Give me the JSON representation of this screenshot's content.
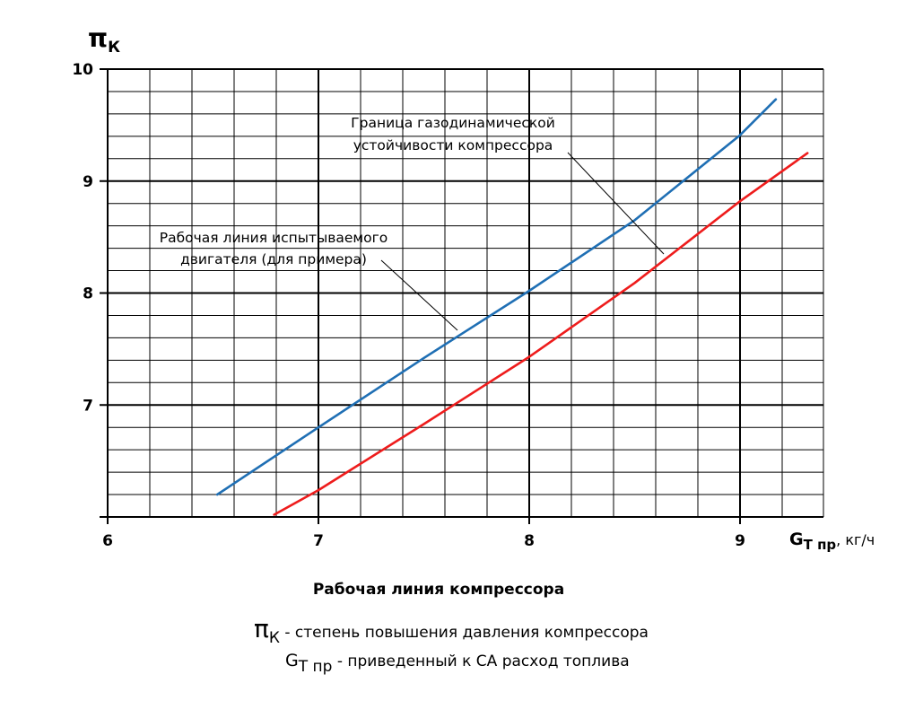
{
  "chart_data": {
    "type": "line",
    "title": "Рабочая линия компрессора",
    "ylabel": {
      "main": "π",
      "sub": "К"
    },
    "xlabel": {
      "main": "G",
      "sub": "Т пр",
      "unit": ", кг/ч"
    },
    "xlim": [
      6,
      9.3
    ],
    "ylim": [
      6,
      10
    ],
    "x_ticks": [
      6,
      7,
      8,
      9
    ],
    "y_ticks": [
      7,
      8,
      9,
      10
    ],
    "x_tick_labels": [
      "6",
      "7",
      "8",
      "9"
    ],
    "y_tick_labels": [
      "7",
      "8",
      "9",
      "10"
    ],
    "grid": true,
    "series": [
      {
        "color": "#1f6fb4",
        "x": [
          6.52,
          7.0,
          7.5,
          8.0,
          8.5,
          9.0,
          9.17
        ],
        "y": [
          6.2,
          6.8,
          7.42,
          8.02,
          8.65,
          9.41,
          9.73
        ]
      },
      {
        "color": "#ee1c1c",
        "x": [
          6.79,
          7.0,
          7.5,
          8.0,
          8.5,
          9.0,
          9.32
        ],
        "y": [
          6.02,
          6.24,
          6.83,
          7.43,
          8.09,
          8.82,
          9.25
        ]
      }
    ],
    "annotations": [
      {
        "lines": [
          "Граница газодинамической",
          "устойчивости компрессора"
        ]
      },
      {
        "lines": [
          "Рабочая линия испытываемого",
          "двигателя (для примера)"
        ]
      }
    ],
    "legend_notes": [
      {
        "symbol": "π",
        "sub": "К",
        "text": " - степень повышения давления компрессора"
      },
      {
        "symbol": "G",
        "sub": "Т пр",
        "text": " - приведенный к СА расход топлива"
      }
    ]
  }
}
